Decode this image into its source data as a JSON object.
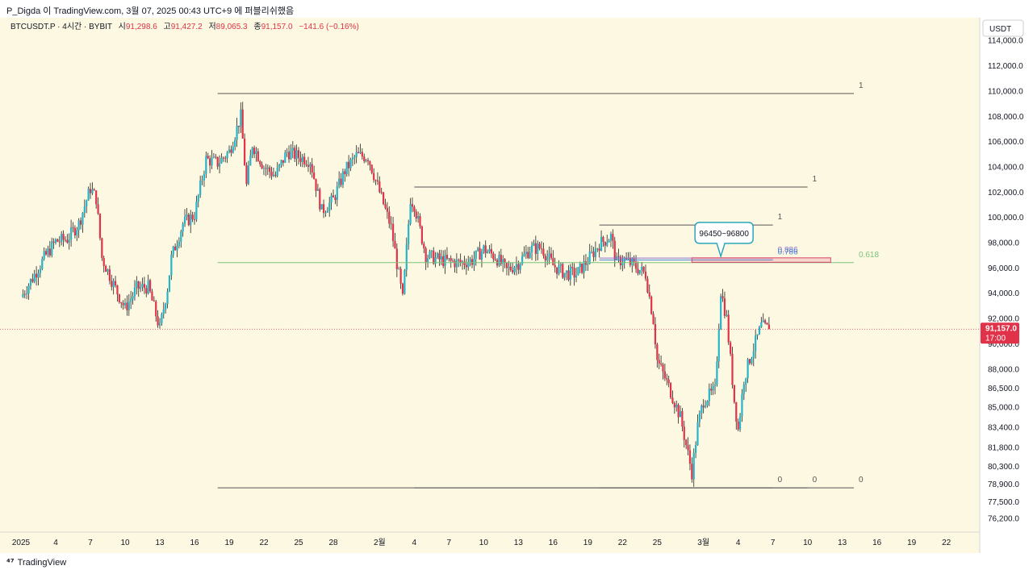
{
  "header": {
    "author_line": "P_Digda 이 TradingView.com, 3월 07, 2025 00:43 UTC+9 에 퍼블리쉬했음"
  },
  "legend": {
    "symbol": "BTCUSDT.P · 4시간 · BYBIT",
    "open_label": "시",
    "open": "91,298.6",
    "high_label": "고",
    "high": "91,427.2",
    "low_label": "저",
    "low": "89,065.3",
    "close_label": "종",
    "close": "91,157.0",
    "change": "−141.6 (−0.16%)"
  },
  "currency_button": "USDT",
  "price_badge": {
    "price": "91,157.0",
    "countdown": "17:00"
  },
  "callout": {
    "text": "96450~96800"
  },
  "footer": {
    "logo_text": "TradingView"
  },
  "colors": {
    "background": "#fdf8e1",
    "bull": "#26b4c8",
    "bear": "#e0334a",
    "wick": "#202020",
    "fib_line": "#555555",
    "level_618": "#7cc27c",
    "level_786": "#4a88d8",
    "level_886": "#8b6fd0",
    "zone": "#d9446a",
    "callout_border": "#2aa7bd",
    "price_line": "#e84c5a"
  },
  "chart_data": {
    "type": "candlestick",
    "symbol": "BTCUSDT.P",
    "interval": "4시간",
    "exchange": "BYBIT",
    "y_axis": {
      "range": [
        75100,
        115800
      ],
      "ticks": [
        "114,000.0",
        "112,000.0",
        "110,000.0",
        "108,000.0",
        "106,000.0",
        "104,000.0",
        "102,000.0",
        "100,000.0",
        "98,000.0",
        "96,000.0",
        "94,000.0",
        "92,000.0",
        "90,000.0",
        "88,000.0",
        "86,500.0",
        "85,000.0",
        "83,400.0",
        "81,800.0",
        "80,300.0",
        "78,900.0",
        "77,500.0",
        "76,200.0"
      ],
      "tick_values": [
        114000,
        112000,
        110000,
        108000,
        106000,
        104000,
        102000,
        100000,
        98000,
        96000,
        94000,
        92000,
        90000,
        88000,
        86500,
        85000,
        83400,
        81800,
        80300,
        78900,
        77500,
        76200
      ]
    },
    "x_axis": {
      "ticks": [
        {
          "label": "2025",
          "date": "2025-01-01"
        },
        {
          "label": "4",
          "date": "2025-01-04"
        },
        {
          "label": "7",
          "date": "2025-01-07"
        },
        {
          "label": "10",
          "date": "2025-01-10"
        },
        {
          "label": "13",
          "date": "2025-01-13"
        },
        {
          "label": "16",
          "date": "2025-01-16"
        },
        {
          "label": "19",
          "date": "2025-01-19"
        },
        {
          "label": "22",
          "date": "2025-01-22"
        },
        {
          "label": "25",
          "date": "2025-01-25"
        },
        {
          "label": "28",
          "date": "2025-01-28"
        },
        {
          "label": "2월",
          "date": "2025-02-01"
        },
        {
          "label": "4",
          "date": "2025-02-04"
        },
        {
          "label": "7",
          "date": "2025-02-07"
        },
        {
          "label": "10",
          "date": "2025-02-10"
        },
        {
          "label": "13",
          "date": "2025-02-13"
        },
        {
          "label": "16",
          "date": "2025-02-16"
        },
        {
          "label": "19",
          "date": "2025-02-19"
        },
        {
          "label": "22",
          "date": "2025-02-22"
        },
        {
          "label": "25",
          "date": "2025-02-25"
        },
        {
          "label": "3월",
          "date": "2025-03-01"
        },
        {
          "label": "4",
          "date": "2025-03-04"
        },
        {
          "label": "7",
          "date": "2025-03-07"
        },
        {
          "label": "10",
          "date": "2025-03-10"
        },
        {
          "label": "13",
          "date": "2025-03-13"
        },
        {
          "label": "16",
          "date": "2025-03-16"
        },
        {
          "label": "19",
          "date": "2025-03-19"
        },
        {
          "label": "22",
          "date": "2025-03-22"
        }
      ]
    },
    "price_path": [
      {
        "date": "2025-01-01T00:00",
        "price": 93700
      },
      {
        "date": "2025-01-02T00:00",
        "price": 95200
      },
      {
        "date": "2025-01-03T00:00",
        "price": 96800
      },
      {
        "date": "2025-01-04T00:00",
        "price": 98100
      },
      {
        "date": "2025-01-05T00:00",
        "price": 98300
      },
      {
        "date": "2025-01-06T00:00",
        "price": 99500
      },
      {
        "date": "2025-01-07T00:00",
        "price": 102300
      },
      {
        "date": "2025-01-07T12:00",
        "price": 101500
      },
      {
        "date": "2025-01-08T00:00",
        "price": 96800
      },
      {
        "date": "2025-01-09T00:00",
        "price": 94700
      },
      {
        "date": "2025-01-10T00:00",
        "price": 92800
      },
      {
        "date": "2025-01-11T00:00",
        "price": 94400
      },
      {
        "date": "2025-01-12T00:00",
        "price": 94500
      },
      {
        "date": "2025-01-13T00:00",
        "price": 91200
      },
      {
        "date": "2025-01-13T16:00",
        "price": 94400
      },
      {
        "date": "2025-01-14T00:00",
        "price": 96800
      },
      {
        "date": "2025-01-15T00:00",
        "price": 99500
      },
      {
        "date": "2025-01-16T00:00",
        "price": 100200
      },
      {
        "date": "2025-01-17T00:00",
        "price": 104600
      },
      {
        "date": "2025-01-18T00:00",
        "price": 104300
      },
      {
        "date": "2025-01-19T00:00",
        "price": 105200
      },
      {
        "date": "2025-01-20T00:00",
        "price": 108000
      },
      {
        "date": "2025-01-20T12:00",
        "price": 102500
      },
      {
        "date": "2025-01-21T00:00",
        "price": 105800
      },
      {
        "date": "2025-01-22T00:00",
        "price": 104000
      },
      {
        "date": "2025-01-23T00:00",
        "price": 103300
      },
      {
        "date": "2025-01-24T00:00",
        "price": 105200
      },
      {
        "date": "2025-01-25T00:00",
        "price": 104800
      },
      {
        "date": "2025-01-26T00:00",
        "price": 104500
      },
      {
        "date": "2025-01-27T00:00",
        "price": 100500
      },
      {
        "date": "2025-01-28T00:00",
        "price": 101400
      },
      {
        "date": "2025-01-29T00:00",
        "price": 103700
      },
      {
        "date": "2025-01-30T00:00",
        "price": 104900
      },
      {
        "date": "2025-01-31T00:00",
        "price": 104800
      },
      {
        "date": "2025-02-01T00:00",
        "price": 102000
      },
      {
        "date": "2025-02-02T00:00",
        "price": 99200
      },
      {
        "date": "2025-02-03T00:00",
        "price": 93500
      },
      {
        "date": "2025-02-03T16:00",
        "price": 101500
      },
      {
        "date": "2025-02-04T00:00",
        "price": 101000
      },
      {
        "date": "2025-02-05T00:00",
        "price": 97000
      },
      {
        "date": "2025-02-06T00:00",
        "price": 96700
      },
      {
        "date": "2025-02-07T00:00",
        "price": 96500
      },
      {
        "date": "2025-02-08T00:00",
        "price": 96400
      },
      {
        "date": "2025-02-09T00:00",
        "price": 96600
      },
      {
        "date": "2025-02-10T00:00",
        "price": 97500
      },
      {
        "date": "2025-02-11T00:00",
        "price": 96900
      },
      {
        "date": "2025-02-12T00:00",
        "price": 95800
      },
      {
        "date": "2025-02-13T00:00",
        "price": 96400
      },
      {
        "date": "2025-02-14T00:00",
        "price": 97500
      },
      {
        "date": "2025-02-15T00:00",
        "price": 97600
      },
      {
        "date": "2025-02-16T00:00",
        "price": 96200
      },
      {
        "date": "2025-02-17T00:00",
        "price": 95600
      },
      {
        "date": "2025-02-18T00:00",
        "price": 95500
      },
      {
        "date": "2025-02-19T00:00",
        "price": 96600
      },
      {
        "date": "2025-02-20T00:00",
        "price": 97900
      },
      {
        "date": "2025-02-21T00:00",
        "price": 98500
      },
      {
        "date": "2025-02-21T12:00",
        "price": 96400
      },
      {
        "date": "2025-02-22T00:00",
        "price": 96700
      },
      {
        "date": "2025-02-23T00:00",
        "price": 96200
      },
      {
        "date": "2025-02-24T00:00",
        "price": 95500
      },
      {
        "date": "2025-02-24T16:00",
        "price": 91900
      },
      {
        "date": "2025-02-25T00:00",
        "price": 88700
      },
      {
        "date": "2025-02-26T00:00",
        "price": 86600
      },
      {
        "date": "2025-02-27T00:00",
        "price": 84200
      },
      {
        "date": "2025-02-28T00:00",
        "price": 79800
      },
      {
        "date": "2025-02-28T12:00",
        "price": 83500
      },
      {
        "date": "2025-03-01T00:00",
        "price": 85500
      },
      {
        "date": "2025-03-02T00:00",
        "price": 86300
      },
      {
        "date": "2025-03-02T12:00",
        "price": 94200
      },
      {
        "date": "2025-03-03T00:00",
        "price": 92000
      },
      {
        "date": "2025-03-03T16:00",
        "price": 85500
      },
      {
        "date": "2025-03-04T00:00",
        "price": 83200
      },
      {
        "date": "2025-03-04T12:00",
        "price": 87200
      },
      {
        "date": "2025-03-05T00:00",
        "price": 88800
      },
      {
        "date": "2025-03-06T00:00",
        "price": 91400
      },
      {
        "date": "2025-03-06T16:00",
        "price": 91157
      }
    ],
    "fib_drawings": [
      {
        "levels": [
          {
            "label": "1",
            "price": 109800
          },
          {
            "label": "0.618",
            "price": 96420
          },
          {
            "label": "0",
            "price": 78600
          }
        ],
        "from_date": "2025-01-18",
        "to_date": "2025-03-14"
      },
      {
        "levels": [
          {
            "label": "1",
            "price": 102400
          },
          {
            "label": "0",
            "price": 78600
          }
        ],
        "from_date": "2025-02-04",
        "to_date": "2025-03-10"
      },
      {
        "levels": [
          {
            "label": "1",
            "price": 99400
          },
          {
            "label": "0.886",
            "price": 96780
          },
          {
            "label": "0.786",
            "price": 96630
          },
          {
            "label": "0",
            "price": 78600
          }
        ],
        "from_date": "2025-02-20",
        "to_date": "2025-03-07"
      }
    ],
    "zone": {
      "label": "96450~96800",
      "low": 96450,
      "high": 96800
    },
    "last_price": 91157.0
  }
}
